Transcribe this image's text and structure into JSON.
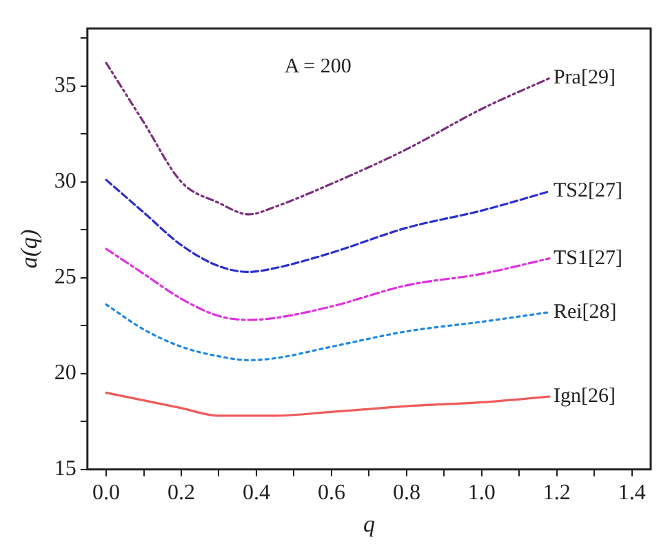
{
  "chart_data": {
    "type": "line",
    "xlabel": "q",
    "ylabel": "a(q)",
    "annotations": [
      "A = 200"
    ],
    "x": [
      0,
      0.1,
      0.2,
      0.3,
      0.38,
      0.45,
      0.6,
      0.8,
      1.0,
      1.18
    ],
    "series": [
      {
        "name": "Pra[29]",
        "color": "#7b2f7e",
        "line_style": "dashdotdot",
        "values": [
          36.2,
          33.1,
          30.0,
          28.9,
          28.3,
          28.7,
          29.9,
          31.7,
          33.8,
          35.4
        ]
      },
      {
        "name": "TS2[27]",
        "color": "#2a2fd0",
        "line_style": "dashed",
        "values": [
          30.1,
          28.4,
          26.7,
          25.6,
          25.3,
          25.5,
          26.3,
          27.6,
          28.5,
          29.5
        ]
      },
      {
        "name": "TS1[27]",
        "color": "#e030e0",
        "line_style": "dashdot",
        "values": [
          26.5,
          25.2,
          23.9,
          23.0,
          22.8,
          22.9,
          23.5,
          24.6,
          25.2,
          26.0
        ]
      },
      {
        "name": "Rei[28]",
        "color": "#1e88e5",
        "line_style": "dotted",
        "values": [
          23.6,
          22.3,
          21.4,
          20.9,
          20.7,
          20.8,
          21.4,
          22.2,
          22.7,
          23.2
        ]
      },
      {
        "name": "Ign[26]",
        "color": "#f05a5a",
        "line_style": "solid",
        "values": [
          19.0,
          18.6,
          18.2,
          17.8,
          17.8,
          17.8,
          18.0,
          18.3,
          18.5,
          18.8
        ]
      }
    ],
    "xlim": [
      -0.05,
      1.45
    ],
    "xticks": [
      {
        "value": 0,
        "label": "0.0"
      },
      {
        "value": 0.1,
        "label": null
      },
      {
        "value": 0.2,
        "label": "0.2"
      },
      {
        "value": 0.3,
        "label": null
      },
      {
        "value": 0.4,
        "label": "0.4"
      },
      {
        "value": 0.5,
        "label": null
      },
      {
        "value": 0.6,
        "label": "0.6"
      },
      {
        "value": 0.7,
        "label": null
      },
      {
        "value": 0.8,
        "label": "0.8"
      },
      {
        "value": 0.9,
        "label": null
      },
      {
        "value": 1.0,
        "label": "1.0"
      },
      {
        "value": 1.1,
        "label": null
      },
      {
        "value": 1.2,
        "label": "1.2"
      },
      {
        "value": 1.3,
        "label": null
      },
      {
        "value": 1.4,
        "label": "1.4"
      }
    ],
    "ylim": [
      15,
      38
    ],
    "yticks": [
      15,
      {
        "value": 17.5,
        "label": null
      },
      20,
      {
        "value": 22.5,
        "label": null
      },
      25,
      {
        "value": 27.5,
        "label": null
      },
      30,
      {
        "value": 32.5,
        "label": null
      },
      35,
      {
        "value": 37.5,
        "label": null
      }
    ],
    "grid": false,
    "legend": false,
    "marker": "none"
  }
}
